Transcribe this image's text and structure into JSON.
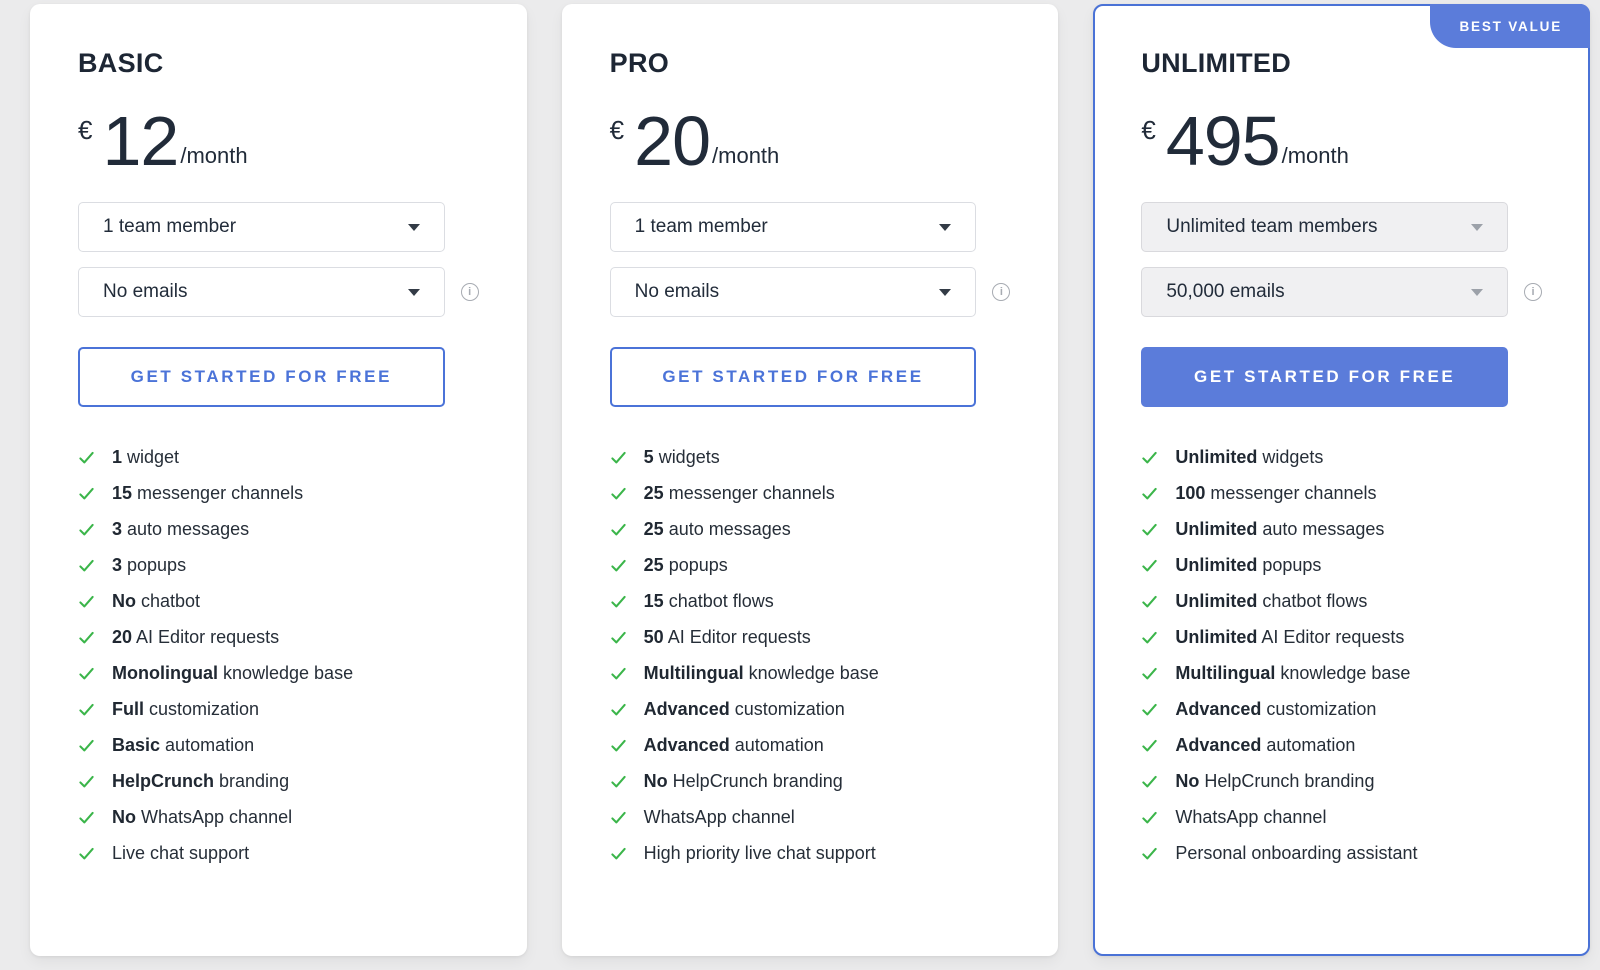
{
  "colors": {
    "page_background": "#ebebec",
    "accent_blue": "#4b73d8",
    "filled_blue": "#5b7cda",
    "check_green": "#3bb54a",
    "text_dark": "#1d2634"
  },
  "cards": [
    {
      "title": "BASIC",
      "currency": "€",
      "price": "12",
      "period": "/month",
      "team_select": {
        "value": "1 team member"
      },
      "email_select": {
        "value": "No emails"
      },
      "cta": "GET STARTED FOR FREE",
      "features": [
        {
          "bold": "1",
          "text": "widget"
        },
        {
          "bold": "15",
          "text": "messenger channels"
        },
        {
          "bold": "3",
          "text": "auto messages"
        },
        {
          "bold": "3",
          "text": "popups"
        },
        {
          "bold": "No",
          "text": "chatbot"
        },
        {
          "bold": "20",
          "text": "AI Editor requests"
        },
        {
          "bold": "Monolingual",
          "text": "knowledge base"
        },
        {
          "bold": "Full",
          "text": "customization"
        },
        {
          "bold": "Basic",
          "text": "automation"
        },
        {
          "bold": "HelpCrunch",
          "text": "branding"
        },
        {
          "bold": "No",
          "text": "WhatsApp channel"
        },
        {
          "bold": "",
          "text": "Live chat support"
        }
      ]
    },
    {
      "title": "PRO",
      "currency": "€",
      "price": "20",
      "period": "/month",
      "team_select": {
        "value": "1 team member"
      },
      "email_select": {
        "value": "No emails"
      },
      "cta": "GET STARTED FOR FREE",
      "features": [
        {
          "bold": "5",
          "text": "widgets"
        },
        {
          "bold": "25",
          "text": "messenger channels"
        },
        {
          "bold": "25",
          "text": "auto messages"
        },
        {
          "bold": "25",
          "text": "popups"
        },
        {
          "bold": "15",
          "text": "chatbot flows"
        },
        {
          "bold": "50",
          "text": "AI Editor requests"
        },
        {
          "bold": "Multilingual",
          "text": "knowledge base"
        },
        {
          "bold": "Advanced",
          "text": "customization"
        },
        {
          "bold": "Advanced",
          "text": "automation"
        },
        {
          "bold": "No",
          "text": "HelpCrunch branding"
        },
        {
          "bold": "",
          "text": "WhatsApp channel"
        },
        {
          "bold": "",
          "text": "High priority live chat support"
        }
      ]
    },
    {
      "title": "UNLIMITED",
      "badge": "BEST VALUE",
      "currency": "€",
      "price": "495",
      "period": "/month",
      "team_select": {
        "value": "Unlimited team members"
      },
      "email_select": {
        "value": "50,000 emails"
      },
      "cta": "GET STARTED FOR FREE",
      "features": [
        {
          "bold": "Unlimited",
          "text": "widgets"
        },
        {
          "bold": "100",
          "text": "messenger channels"
        },
        {
          "bold": "Unlimited",
          "text": "auto messages"
        },
        {
          "bold": "Unlimited",
          "text": "popups"
        },
        {
          "bold": "Unlimited",
          "text": "chatbot flows"
        },
        {
          "bold": "Unlimited",
          "text": "AI Editor requests"
        },
        {
          "bold": "Multilingual",
          "text": "knowledge base"
        },
        {
          "bold": "Advanced",
          "text": "customization"
        },
        {
          "bold": "Advanced",
          "text": "automation"
        },
        {
          "bold": "No",
          "text": "HelpCrunch branding"
        },
        {
          "bold": "",
          "text": "WhatsApp channel"
        },
        {
          "bold": "",
          "text": "Personal onboarding assistant"
        }
      ]
    }
  ]
}
